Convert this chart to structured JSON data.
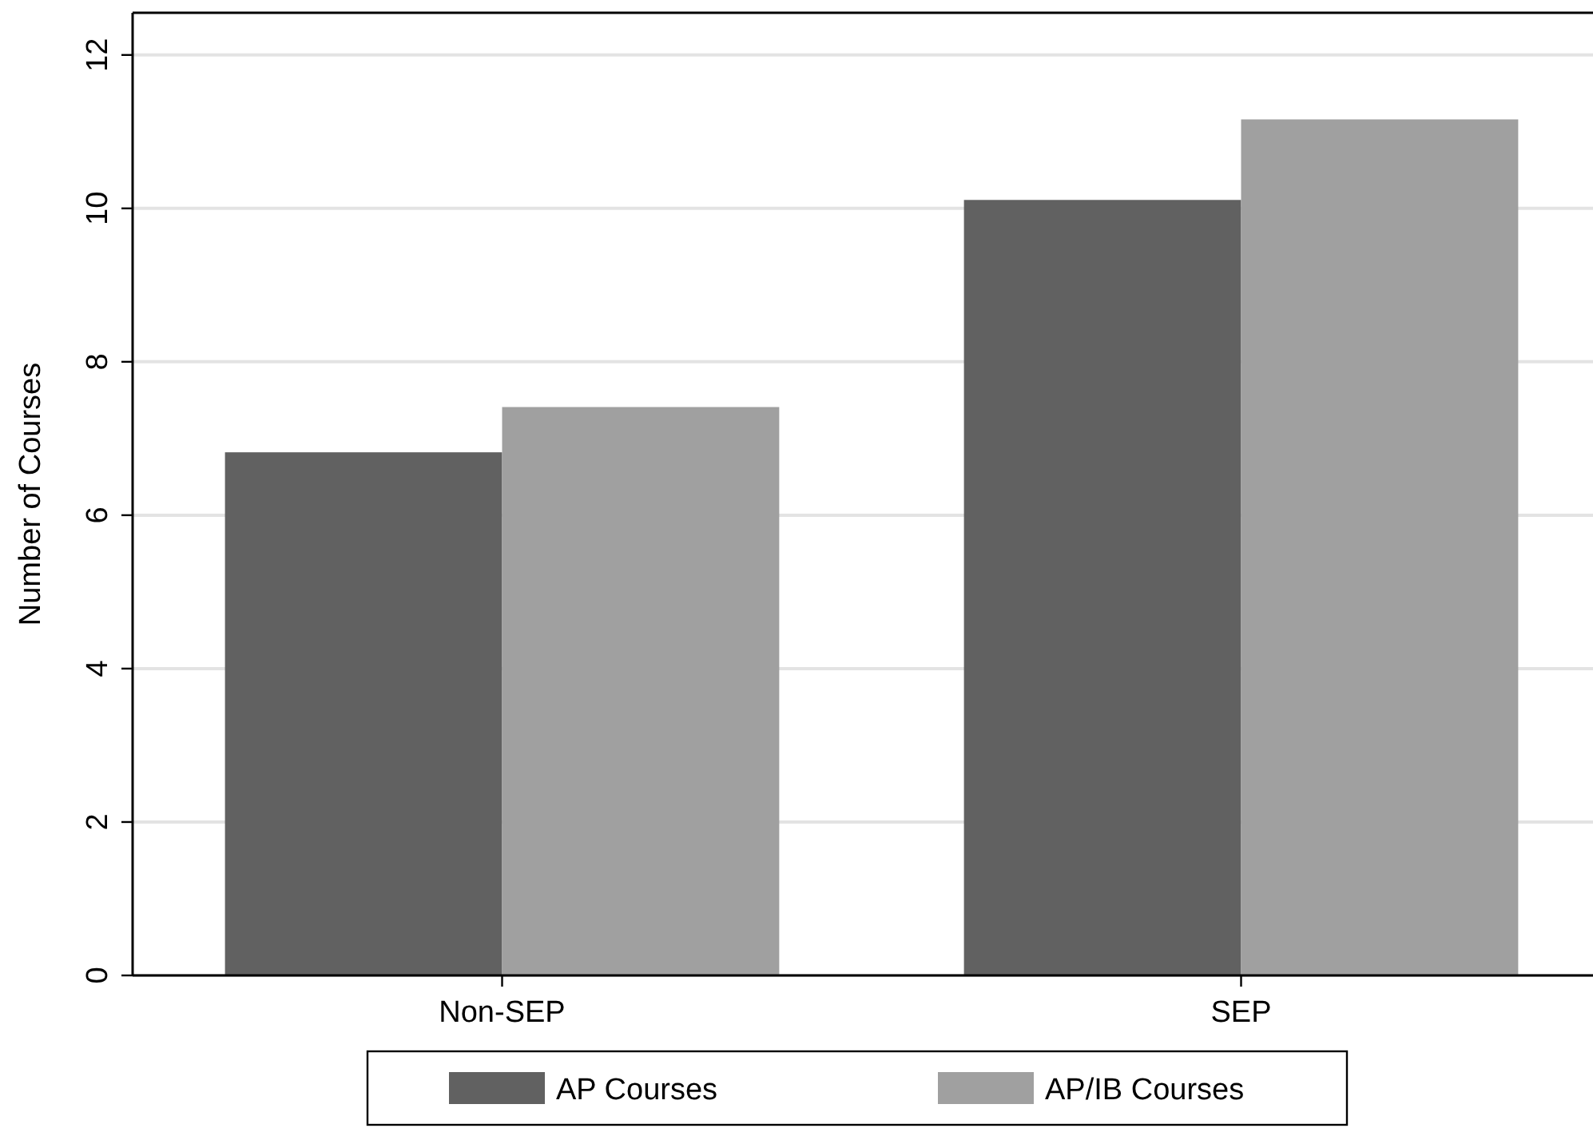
{
  "chart_data": {
    "type": "bar",
    "ylabel": "Number of Courses",
    "categories": [
      "Non-SEP",
      "SEP"
    ],
    "series": [
      {
        "name": "AP Courses",
        "color": "#616161",
        "values": [
          6.82,
          10.11
        ]
      },
      {
        "name": "AP/IB Courses",
        "color": "#a0a0a0",
        "values": [
          7.41,
          11.16
        ]
      }
    ],
    "ylim": [
      0,
      12.55
    ],
    "yticks": [
      0,
      2,
      4,
      6,
      8,
      10,
      12
    ],
    "grid": "y",
    "legend": "bottom"
  }
}
